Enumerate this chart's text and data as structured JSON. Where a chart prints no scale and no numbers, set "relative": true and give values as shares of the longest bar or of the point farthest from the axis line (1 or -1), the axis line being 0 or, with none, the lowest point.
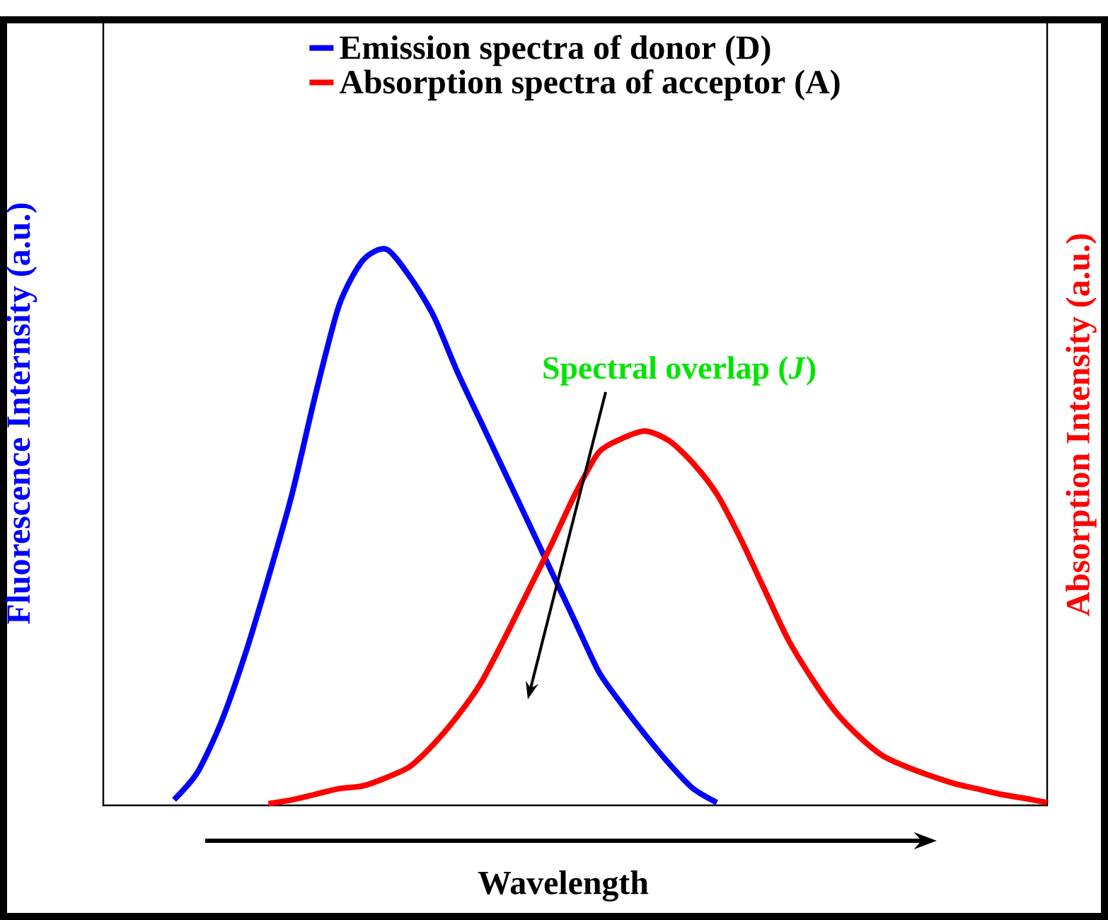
{
  "chart_data": {
    "type": "line",
    "relative": true,
    "legend": "top",
    "xlabel": "Wavelength",
    "ylabel": "Fluorescence Internsity (a.u.)",
    "y2label": "Absorption Intensity (a.u.)",
    "annotations": [
      "Spectral overlap (*J*)"
    ],
    "categories": [
      null,
      null,
      null,
      null,
      null,
      null,
      null,
      null,
      null,
      null,
      null,
      null,
      null,
      null,
      null,
      null,
      null,
      null,
      null,
      null,
      null,
      null,
      null,
      null,
      null,
      null,
      null,
      null,
      null,
      null,
      null,
      null,
      null,
      null,
      null,
      null,
      null,
      null,
      null,
      null,
      null
    ],
    "series": [
      {
        "name": "Emission spectra of donor (D)",
        "color": "#0000ff",
        "values": [
          null,
          null,
          null,
          0.01,
          0.06,
          0.15,
          0.27,
          0.41,
          0.56,
          0.74,
          0.9,
          0.98,
          1.0,
          0.95,
          0.88,
          0.78,
          0.69,
          0.6,
          0.51,
          0.42,
          0.33,
          0.24,
          0.18,
          0.125,
          0.074,
          0.03,
          0.005,
          null,
          null,
          null,
          null,
          null,
          null,
          null,
          null,
          null,
          null,
          null,
          null,
          null,
          null
        ]
      },
      {
        "name": "Absorption spectra of acceptor (A)",
        "color": "#ff0000",
        "values": [
          null,
          null,
          null,
          null,
          null,
          null,
          null,
          0.003,
          0.01,
          0.02,
          0.03,
          0.035,
          0.05,
          0.07,
          0.11,
          0.16,
          0.22,
          0.3,
          0.385,
          0.47,
          0.56,
          0.635,
          0.66,
          0.673,
          0.655,
          0.615,
          0.56,
          0.48,
          0.39,
          0.3,
          0.23,
          0.17,
          0.125,
          0.09,
          0.07,
          0.054,
          0.04,
          0.03,
          0.02,
          0.013,
          0.005
        ]
      }
    ]
  }
}
